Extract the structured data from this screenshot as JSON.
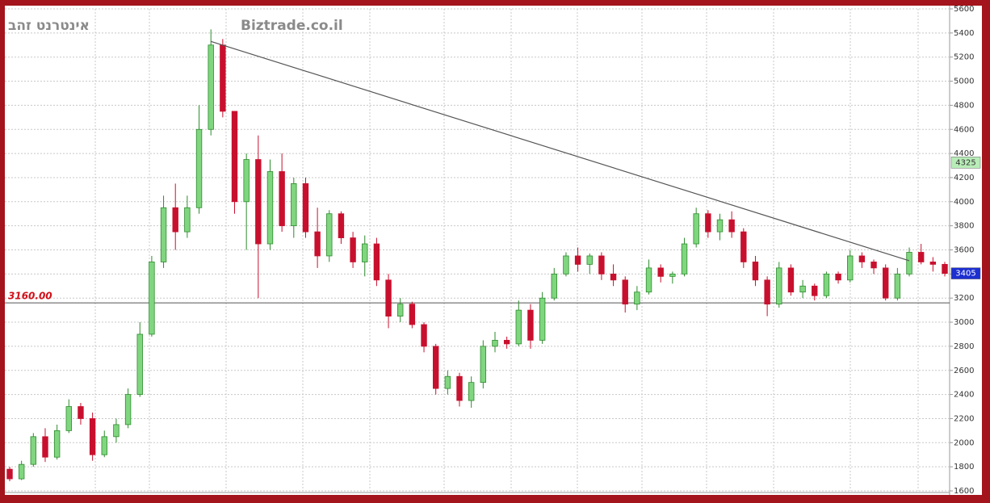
{
  "chart_data": {
    "type": "candlestick",
    "title": "Biztrade.co.il",
    "subtitle": "אינטרנט זהב",
    "open": [
      1780,
      1700,
      1820,
      2050,
      1880,
      2100,
      2300,
      2200,
      1900,
      2050,
      2150,
      2400,
      2900,
      3500,
      3950,
      3750,
      3950,
      4600,
      5300,
      4750,
      4000,
      4350,
      3650,
      4250,
      3800,
      4150,
      3750,
      3550,
      3900,
      3700,
      3500,
      3650,
      3350,
      3050,
      3150,
      2980,
      2800,
      2450,
      2550,
      2350,
      2500,
      2800,
      2850,
      2820,
      3100,
      2850,
      3200,
      3400,
      3550,
      3480,
      3550,
      3400,
      3350,
      3150,
      3250,
      3450,
      3380,
      3400,
      3650,
      3900,
      3750,
      3850,
      3750,
      3500,
      3350,
      3150,
      3450,
      3250,
      3300,
      3220,
      3400,
      3350,
      3550,
      3500,
      3450,
      3200,
      3400,
      3580,
      3500,
      3480
    ],
    "high": [
      1800,
      1850,
      2080,
      2120,
      2150,
      2360,
      2330,
      2250,
      2100,
      2200,
      2450,
      3000,
      3550,
      4050,
      4150,
      4050,
      4800,
      5430,
      5350,
      4750,
      4400,
      4550,
      4350,
      4400,
      4200,
      4200,
      3950,
      3930,
      3920,
      3750,
      3720,
      3700,
      3400,
      3200,
      3170,
      3000,
      2820,
      2600,
      2580,
      2550,
      2850,
      2920,
      2880,
      3180,
      3150,
      3250,
      3450,
      3580,
      3620,
      3570,
      3580,
      3480,
      3380,
      3300,
      3520,
      3480,
      3420,
      3700,
      3950,
      3930,
      3900,
      3920,
      3780,
      3550,
      3380,
      3500,
      3480,
      3350,
      3320,
      3420,
      3420,
      3600,
      3580,
      3520,
      3480,
      3450,
      3620,
      3650,
      3540,
      3500
    ],
    "low": [
      1680,
      1690,
      1800,
      1840,
      1860,
      2080,
      2150,
      1850,
      1880,
      2000,
      2120,
      2380,
      2880,
      3450,
      3600,
      3700,
      3900,
      4550,
      4700,
      3900,
      3600,
      3200,
      3600,
      3750,
      3700,
      3700,
      3450,
      3500,
      3650,
      3450,
      3380,
      3300,
      2950,
      3000,
      2950,
      2750,
      2400,
      2400,
      2300,
      2290,
      2450,
      2750,
      2780,
      2800,
      2780,
      2820,
      3180,
      3380,
      3420,
      3400,
      3350,
      3300,
      3080,
      3100,
      3230,
      3330,
      3320,
      3380,
      3620,
      3700,
      3680,
      3700,
      3450,
      3300,
      3050,
      3120,
      3220,
      3200,
      3180,
      3200,
      3320,
      3330,
      3450,
      3400,
      3180,
      3180,
      3380,
      3480,
      3420,
      3380
    ],
    "close": [
      1700,
      1820,
      2050,
      1880,
      2100,
      2300,
      2200,
      1900,
      2050,
      2150,
      2400,
      2900,
      3500,
      3950,
      3750,
      3950,
      4600,
      5300,
      4750,
      4000,
      4350,
      3650,
      4250,
      3800,
      4150,
      3750,
      3550,
      3900,
      3700,
      3500,
      3650,
      3350,
      3050,
      3150,
      2980,
      2800,
      2450,
      2550,
      2350,
      2500,
      2800,
      2850,
      2820,
      3100,
      2850,
      3200,
      3400,
      3550,
      3480,
      3550,
      3400,
      3350,
      3150,
      3250,
      3450,
      3380,
      3400,
      3650,
      3900,
      3750,
      3850,
      3750,
      3500,
      3350,
      3150,
      3450,
      3250,
      3300,
      3220,
      3400,
      3350,
      3550,
      3500,
      3450,
      3200,
      3400,
      3580,
      3500,
      3480,
      3405
    ],
    "up_color": "#7fd67f",
    "down_color": "#c8102e",
    "ylim": [
      1600,
      5600
    ],
    "yticks": [
      1600,
      1800,
      2000,
      2200,
      2400,
      2600,
      2800,
      3000,
      3200,
      3400,
      3600,
      3800,
      4000,
      4200,
      4400,
      4600,
      4800,
      5000,
      5200,
      5400,
      5600
    ],
    "grid": true,
    "trendline": {
      "x": [
        17,
        76
      ],
      "y": [
        5330,
        3510
      ],
      "color": "#555555"
    },
    "hline": {
      "value": 3160,
      "label": "3160.00",
      "color": "#555555",
      "label_color": "#d0101a"
    },
    "price_markers": [
      {
        "value": 4325,
        "color": "#b8ecb8",
        "text_color": "#333333"
      },
      {
        "value": 3405,
        "color": "#1c2fd0",
        "text_color": "#ffffff"
      }
    ]
  }
}
